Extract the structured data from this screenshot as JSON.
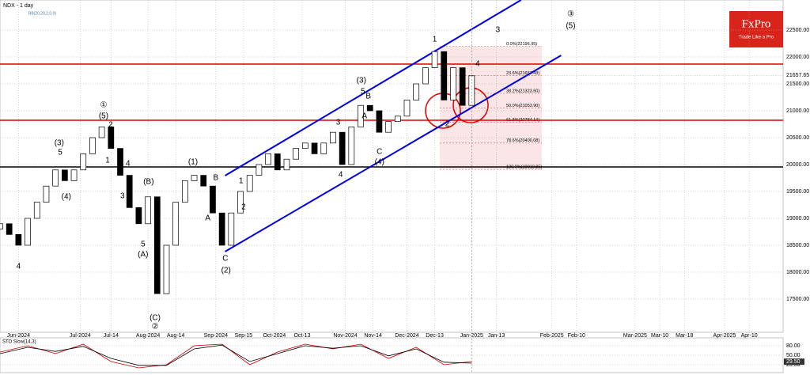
{
  "header": {
    "symbol": "NDX - 1 day",
    "indicator": "BB(20,20,2,0,0)"
  },
  "logo": {
    "name": "FxPro",
    "tagline": "Trade Like a Pro"
  },
  "chart_data": [
    {
      "type": "candlestick",
      "x": [
        0,
        3,
        6,
        9,
        12,
        15,
        18,
        21,
        24,
        27,
        30,
        33,
        36,
        39,
        42,
        45,
        48,
        51,
        54,
        57,
        60,
        63,
        66,
        69,
        72,
        75,
        78,
        81,
        84,
        87,
        90,
        93,
        96,
        99,
        102,
        105,
        108,
        111,
        114,
        117,
        120,
        123,
        126,
        129,
        132,
        135,
        138,
        141,
        144,
        147,
        150,
        153
      ],
      "open": [
        18800,
        18900,
        18700,
        18500,
        19000,
        19300,
        19600,
        19900,
        19700,
        19900,
        20200,
        20500,
        20700,
        20300,
        19800,
        19200,
        18900,
        19400,
        17600,
        18500,
        19300,
        19700,
        19800,
        19600,
        19100,
        18500,
        19100,
        19500,
        19800,
        20000,
        20200,
        19900,
        20100,
        20300,
        20400,
        20200,
        20400,
        20600,
        20000,
        20700,
        21100,
        21000,
        20600,
        20800,
        20900,
        21200,
        21500,
        21800,
        22100,
        21200,
        21800,
        21100
      ],
      "close": [
        18900,
        18700,
        18500,
        19000,
        19300,
        19600,
        19900,
        19700,
        19900,
        20200,
        20500,
        20700,
        20300,
        19800,
        19200,
        18900,
        19400,
        17600,
        18500,
        19300,
        19700,
        19800,
        19600,
        19100,
        18500,
        19100,
        19500,
        19800,
        20000,
        20200,
        19900,
        20100,
        20300,
        20400,
        20200,
        20400,
        20600,
        20000,
        20700,
        21100,
        21000,
        20600,
        20800,
        20900,
        21200,
        21500,
        21800,
        22100,
        21200,
        21800,
        21100,
        21650
      ],
      "up_color": "#ffffff",
      "down_color": "#000000",
      "xlim": [
        0,
        254
      ],
      "ylim": [
        16882,
        23059
      ],
      "yticks": [
        {
          "value": 17500,
          "label": "17500.00"
        },
        {
          "value": 18000,
          "label": "18000.00"
        },
        {
          "value": 18500,
          "label": "18500.00"
        },
        {
          "value": 19000,
          "label": "19000.00"
        },
        {
          "value": 19500,
          "label": "19500.00"
        },
        {
          "value": 20000,
          "label": "20000.00"
        },
        {
          "value": 20500,
          "label": "20500.00"
        },
        {
          "value": 21000,
          "label": "21000.00"
        },
        {
          "value": 21500,
          "label": "21500.00"
        },
        {
          "value": 22000,
          "label": "22000.00"
        },
        {
          "value": 22500,
          "label": "22500.00"
        }
      ],
      "xticks": [
        {
          "value": 6,
          "label": "Jun-2024"
        },
        {
          "value": 26,
          "label": "Jul-2024"
        },
        {
          "value": 36,
          "label": "Jul-14"
        },
        {
          "value": 48,
          "label": "Aug-2024"
        },
        {
          "value": 57,
          "label": "Aug-14"
        },
        {
          "value": 70,
          "label": "Sep-2024"
        },
        {
          "value": 79,
          "label": "Sep-15"
        },
        {
          "value": 89,
          "label": "Oct-2024"
        },
        {
          "value": 98,
          "label": "Oct-13"
        },
        {
          "value": 112,
          "label": "Nov-2024"
        },
        {
          "value": 121,
          "label": "Nov-14"
        },
        {
          "value": 132,
          "label": "Dec-2024"
        },
        {
          "value": 141,
          "label": "Dec-13"
        },
        {
          "value": 153,
          "label": "Jan-2025"
        },
        {
          "value": 161,
          "label": "Jan-13"
        },
        {
          "value": 179,
          "label": "Feb-2025"
        },
        {
          "value": 187,
          "label": "Feb-10"
        },
        {
          "value": 206,
          "label": "Mar-2025"
        },
        {
          "value": 214,
          "label": "Mar-10"
        },
        {
          "value": 222,
          "label": "Mar-18"
        },
        {
          "value": 235,
          "label": "Apr-2025"
        },
        {
          "value": 243,
          "label": "Apr-10"
        }
      ],
      "grid": true,
      "hlines": [
        {
          "value": 21868,
          "color": "#e00000"
        },
        {
          "value": 20824,
          "color": "#e00000"
        },
        {
          "value": 19956,
          "color": "#000000"
        }
      ],
      "channels": [
        {
          "x": [
            73,
            169
          ],
          "y": [
            19794,
            23059
          ],
          "color": "#0000e0"
        },
        {
          "x": [
            73,
            182
          ],
          "y": [
            18382,
            22029
          ],
          "color": "#0000e0"
        }
      ],
      "fib": [
        {
          "value": 22196.95,
          "label": "0.0%(22196.95)"
        },
        {
          "value": 21657.43,
          "label": "23.6%(21657.43)"
        },
        {
          "value": 21323.6,
          "label": "38.2%(21323.60)"
        },
        {
          "value": 21053.9,
          "label": "50.0%(21053.90)"
        },
        {
          "value": 20784.14,
          "label": "61.8%(20784.14)"
        },
        {
          "value": 20400.08,
          "label": "78.6%(20400.08)"
        },
        {
          "value": 19910.85,
          "label": "100.0%(19910.85)"
        }
      ],
      "last_price": 21657.65,
      "annotations": [
        {
          "text": "4",
          "x": 6,
          "y": 18103
        },
        {
          "text": "(3)",
          "x": 19.2,
          "y": 20397
        },
        {
          "text": "5",
          "x": 19.5,
          "y": 20221
        },
        {
          "text": "(4)",
          "x": 21.5,
          "y": 19397
        },
        {
          "text": "①",
          "x": 33.6,
          "y": 21103
        },
        {
          "text": "(5)",
          "x": 33.6,
          "y": 20897
        },
        {
          "text": "2",
          "x": 35.9,
          "y": 20735
        },
        {
          "text": "1",
          "x": 34.9,
          "y": 20074
        },
        {
          "text": "4",
          "x": 41.5,
          "y": 20015
        },
        {
          "text": "3",
          "x": 39.7,
          "y": 19412
        },
        {
          "text": "(B)",
          "x": 48.2,
          "y": 19676
        },
        {
          "text": "5",
          "x": 46.4,
          "y": 18515
        },
        {
          "text": "(A)",
          "x": 46.4,
          "y": 18324
        },
        {
          "text": "(C)",
          "x": 50.3,
          "y": 17147
        },
        {
          "text": "②",
          "x": 50.3,
          "y": 16985
        },
        {
          "text": "(1)",
          "x": 62.6,
          "y": 20044
        },
        {
          "text": "B",
          "x": 70,
          "y": 19750
        },
        {
          "text": "A",
          "x": 67.4,
          "y": 19000
        },
        {
          "text": "C",
          "x": 73.1,
          "y": 18250
        },
        {
          "text": "(2)",
          "x": 73.3,
          "y": 18029
        },
        {
          "text": "1",
          "x": 78.2,
          "y": 19691
        },
        {
          "text": "2",
          "x": 79,
          "y": 19206
        },
        {
          "text": "3",
          "x": 109.7,
          "y": 20779
        },
        {
          "text": "4",
          "x": 110.5,
          "y": 19809
        },
        {
          "text": "(3)",
          "x": 117.2,
          "y": 21559
        },
        {
          "text": "5",
          "x": 117.7,
          "y": 21353
        },
        {
          "text": "B",
          "x": 119.5,
          "y": 21265
        },
        {
          "text": "A",
          "x": 118.2,
          "y": 20897
        },
        {
          "text": "C",
          "x": 123.1,
          "y": 20235
        },
        {
          "text": "(4)",
          "x": 123.1,
          "y": 20044
        },
        {
          "text": "1",
          "x": 141,
          "y": 22324
        },
        {
          "text": "2",
          "x": 145.1,
          "y": 20750
        },
        {
          "text": "3",
          "x": 161.5,
          "y": 22500
        },
        {
          "text": "4",
          "x": 154.9,
          "y": 21868
        },
        {
          "text": "③",
          "x": 185.1,
          "y": 22794
        },
        {
          "text": "(5)",
          "x": 185.1,
          "y": 22574
        }
      ]
    },
    {
      "type": "line",
      "title": "STO Slow(14,3)",
      "x": [
        0,
        9,
        18,
        27,
        36,
        45,
        54,
        63,
        72,
        81,
        90,
        99,
        108,
        117,
        126,
        135,
        144,
        153
      ],
      "series": [
        {
          "color": "#cc0000",
          "values": [
            60,
            80,
            55,
            85,
            30,
            10,
            20,
            80,
            85,
            20,
            60,
            85,
            70,
            85,
            40,
            75,
            20,
            30
          ]
        },
        {
          "color": "#000000",
          "values": [
            55,
            75,
            62,
            78,
            40,
            18,
            18,
            70,
            82,
            30,
            55,
            80,
            72,
            80,
            48,
            70,
            28,
            25
          ]
        }
      ],
      "xlim": [
        0,
        254
      ],
      "ylim": [
        0,
        100
      ],
      "yticks": [
        {
          "value": 80,
          "label": "80.00"
        },
        {
          "value": 50,
          "label": "50.00"
        },
        {
          "value": 20,
          "label": "20.00"
        }
      ],
      "last": {
        "value": 29.5,
        "label": "29.50"
      }
    }
  ]
}
